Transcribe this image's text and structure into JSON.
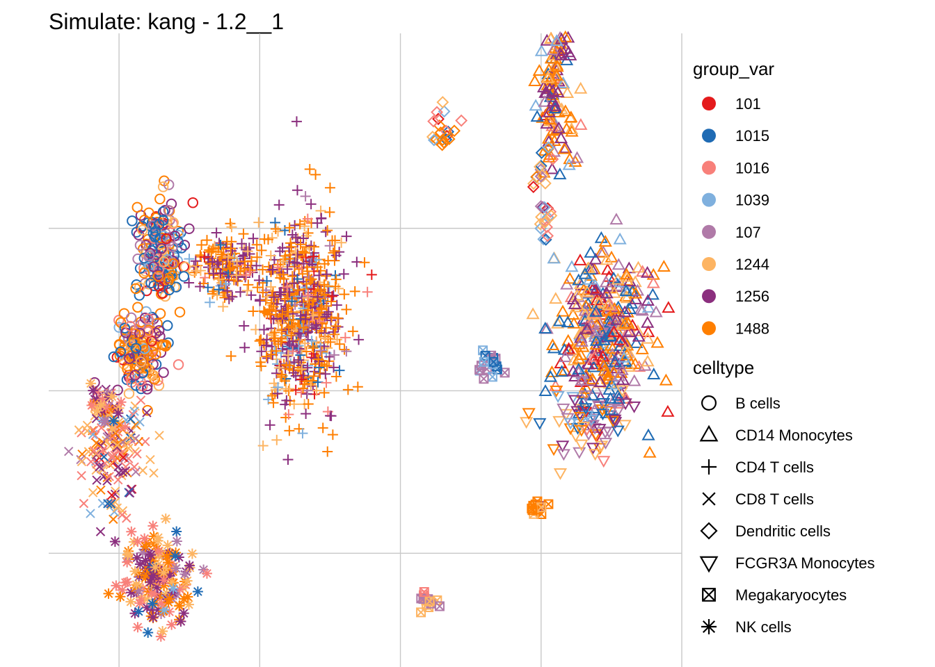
{
  "chart_data": {
    "type": "scatter",
    "title": "Simulate: kang - 1.2__1",
    "xlabel": "",
    "ylabel": "",
    "grid": true,
    "axis_tick_labels": false,
    "legend_placement": "right",
    "legends": [
      {
        "title": "group_var",
        "aesthetic": "color",
        "entries": [
          {
            "label": "101",
            "color": "#E41A1C"
          },
          {
            "label": "1015",
            "color": "#1F6BB4"
          },
          {
            "label": "1016",
            "color": "#F8807A"
          },
          {
            "label": "1039",
            "color": "#7FB0DE"
          },
          {
            "label": "107",
            "color": "#B07AA8"
          },
          {
            "label": "1244",
            "color": "#FDB462"
          },
          {
            "label": "1256",
            "color": "#8B2F7E"
          },
          {
            "label": "1488",
            "color": "#FF7F00"
          }
        ]
      },
      {
        "title": "celltype",
        "aesthetic": "shape",
        "entries": [
          {
            "label": "B cells",
            "shape": "circle"
          },
          {
            "label": "CD14 Monocytes",
            "shape": "triangle"
          },
          {
            "label": "CD4 T cells",
            "shape": "plus"
          },
          {
            "label": "CD8 T cells",
            "shape": "cross"
          },
          {
            "label": "Dendritic cells",
            "shape": "diamond"
          },
          {
            "label": "FCGR3A Monocytes",
            "shape": "triangle-down"
          },
          {
            "label": "Megakaryocytes",
            "shape": "square-x"
          },
          {
            "label": "NK cells",
            "shape": "asterisk"
          }
        ]
      }
    ],
    "clusters": [
      {
        "celltype": "CD4 T cells",
        "x": 0.3,
        "y": 0.48,
        "spread_x": 0.28,
        "spread_y": 0.55,
        "n": 620,
        "color_weights": [
          0.02,
          0.04,
          0.04,
          0.04,
          0.03,
          0.1,
          0.3,
          0.43
        ]
      },
      {
        "celltype": "CD4 T cells",
        "x": -0.25,
        "y": 0.75,
        "spread_x": 0.2,
        "spread_y": 0.18,
        "n": 160,
        "color_weights": [
          0.02,
          0.04,
          0.04,
          0.04,
          0.03,
          0.12,
          0.3,
          0.41
        ]
      },
      {
        "celltype": "B cells",
        "x": -0.7,
        "y": 0.85,
        "spread_x": 0.14,
        "spread_y": 0.3,
        "n": 200,
        "color_weights": [
          0.06,
          0.28,
          0.06,
          0.08,
          0.08,
          0.16,
          0.12,
          0.16
        ]
      },
      {
        "celltype": "B cells",
        "x": -0.85,
        "y": 0.25,
        "spread_x": 0.17,
        "spread_y": 0.22,
        "n": 160,
        "color_weights": [
          0.06,
          0.1,
          0.08,
          0.06,
          0.08,
          0.2,
          0.12,
          0.3
        ]
      },
      {
        "celltype": "CD8 T cells",
        "x": -1.05,
        "y": -0.35,
        "spread_x": 0.2,
        "spread_y": 0.35,
        "n": 160,
        "color_weights": [
          0.04,
          0.04,
          0.26,
          0.06,
          0.08,
          0.24,
          0.14,
          0.14
        ]
      },
      {
        "celltype": "NK cells",
        "x": -0.75,
        "y": -1.15,
        "spread_x": 0.24,
        "spread_y": 0.28,
        "n": 180,
        "color_weights": [
          0.03,
          0.04,
          0.14,
          0.04,
          0.06,
          0.14,
          0.28,
          0.27
        ]
      },
      {
        "celltype": "NK cells",
        "x": -1.1,
        "y": -0.1,
        "spread_x": 0.1,
        "spread_y": 0.12,
        "n": 35,
        "color_weights": [
          0.03,
          0.04,
          0.2,
          0.08,
          0.2,
          0.25,
          0.1,
          0.1
        ]
      },
      {
        "celltype": "CD14 Monocytes",
        "x": 2.45,
        "y": 0.35,
        "spread_x": 0.3,
        "spread_y": 0.45,
        "n": 360,
        "color_weights": [
          0.05,
          0.22,
          0.04,
          0.05,
          0.12,
          0.14,
          0.16,
          0.22
        ]
      },
      {
        "celltype": "CD14 Monocytes",
        "x": 2.1,
        "y": 1.85,
        "spread_x": 0.12,
        "spread_y": 0.5,
        "n": 130,
        "color_weights": [
          0.03,
          0.06,
          0.04,
          0.05,
          0.08,
          0.2,
          0.2,
          0.34
        ]
      },
      {
        "celltype": "FCGR3A Monocytes",
        "x": 2.35,
        "y": -0.2,
        "spread_x": 0.25,
        "spread_y": 0.2,
        "n": 70,
        "color_weights": [
          0.06,
          0.08,
          0.06,
          0.08,
          0.2,
          0.2,
          0.16,
          0.16
        ]
      },
      {
        "celltype": "Dendritic cells",
        "x": 2.02,
        "y": 1.15,
        "spread_x": 0.06,
        "spread_y": 0.3,
        "n": 30,
        "color_weights": [
          0.1,
          0.1,
          0.2,
          0.1,
          0.1,
          0.2,
          0.1,
          0.1
        ]
      },
      {
        "celltype": "Dendritic cells",
        "x": 1.3,
        "y": 1.6,
        "spread_x": 0.1,
        "spread_y": 0.15,
        "n": 20,
        "color_weights": [
          0.1,
          0.2,
          0.2,
          0.05,
          0.05,
          0.1,
          0.1,
          0.2
        ]
      },
      {
        "celltype": "Megakaryocytes",
        "x": 1.63,
        "y": 0.15,
        "spread_x": 0.08,
        "spread_y": 0.1,
        "n": 18,
        "color_weights": [
          0.0,
          0.2,
          0.0,
          0.4,
          0.3,
          0.0,
          0.1,
          0.0
        ]
      },
      {
        "celltype": "Megakaryocytes",
        "x": 1.2,
        "y": -1.3,
        "spread_x": 0.07,
        "spread_y": 0.06,
        "n": 14,
        "color_weights": [
          0.0,
          0.2,
          0.2,
          0.0,
          0.4,
          0.2,
          0.0,
          0.0
        ]
      },
      {
        "celltype": "Megakaryocytes",
        "x": 1.98,
        "y": -0.72,
        "spread_x": 0.06,
        "spread_y": 0.04,
        "n": 12,
        "color_weights": [
          0.0,
          0.0,
          0.0,
          0.0,
          0.0,
          0.1,
          0.1,
          0.8
        ]
      }
    ],
    "xlim": [
      -1.5,
      3.0
    ],
    "ylim": [
      -1.7,
      2.2
    ],
    "x_gridlines": [
      -1,
      0,
      1,
      2,
      3
    ],
    "y_gridlines": [
      -1,
      0,
      1
    ]
  }
}
